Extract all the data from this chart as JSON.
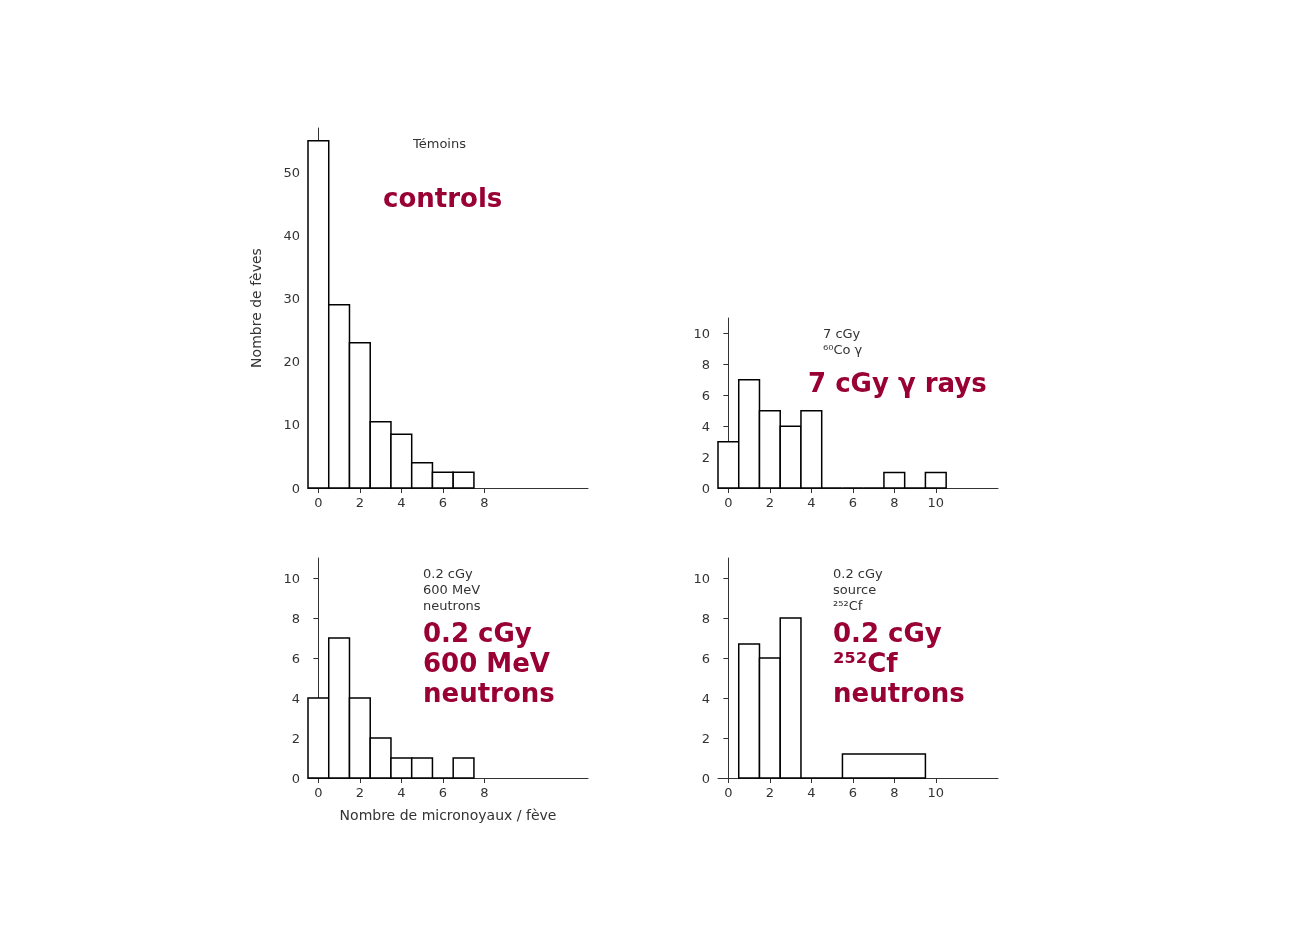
{
  "chart_data": [
    {
      "type": "histogram",
      "title": "controls",
      "subtitle": "Témoins",
      "ylabel": "Nombre de fèves",
      "bins": [
        -0.5,
        0.5,
        1.5,
        2.5,
        3.5,
        4.5,
        5.5,
        6.5,
        7.5
      ],
      "values": [
        55,
        29,
        23,
        10.5,
        8.5,
        4,
        2.5,
        2.5
      ],
      "color": "#000000",
      "xlim": [
        -0.5,
        13
      ],
      "xticks": [
        0,
        2,
        4,
        6,
        8
      ],
      "ylim": [
        0,
        57
      ],
      "yticks": [
        0,
        10,
        20,
        30,
        40,
        50
      ]
    },
    {
      "type": "histogram",
      "title": "7 cGy γ rays",
      "subtitle": "7 cGy\n⁶⁰Co γ",
      "bins": [
        -0.5,
        0.5,
        1.5,
        2.5,
        3.5,
        4.5,
        5.5,
        6.5,
        7.5,
        8.5,
        9.5,
        10.5
      ],
      "values": [
        3,
        7,
        5,
        4,
        5,
        0,
        0,
        0,
        1,
        0,
        1
      ],
      "color": "#000000",
      "xlim": [
        -0.5,
        13
      ],
      "xticks": [
        0,
        2,
        4,
        6,
        8,
        10
      ],
      "ylim": [
        0,
        11
      ],
      "yticks": [
        0,
        2,
        4,
        6,
        8,
        10
      ]
    },
    {
      "type": "histogram",
      "title": "0.2 cGy\n600 MeV\nneutrons",
      "subtitle": "0.2 cGy\n600 MeV\nneutrons",
      "xlabel": "Nombre de micronoyaux / fève",
      "bins": [
        -0.5,
        0.5,
        1.5,
        2.5,
        3.5,
        4.5,
        5.5,
        6.5,
        7.5
      ],
      "values": [
        4,
        7,
        4,
        2,
        1,
        1,
        0,
        1
      ],
      "color": "#000000",
      "xlim": [
        -0.5,
        13
      ],
      "xticks": [
        0,
        2,
        4,
        6,
        8
      ],
      "ylim": [
        0,
        11
      ],
      "yticks": [
        0,
        2,
        4,
        6,
        8,
        10
      ]
    },
    {
      "type": "histogram",
      "title": "0.2 cGy\n²⁵²Cf\nneutrons",
      "subtitle": "0.2 cGy\nsource\n²⁵²Cf",
      "bins": [
        0.5,
        1.5,
        2.5,
        3.5,
        5.5,
        9.5
      ],
      "values": [
        6.7,
        6,
        8,
        0,
        1.2
      ],
      "color": "#000000",
      "xlim": [
        -0.5,
        13
      ],
      "xticks": [
        0,
        2,
        4,
        6,
        8,
        10
      ],
      "ylim": [
        0,
        11
      ],
      "yticks": [
        0,
        2,
        4,
        6,
        8,
        10
      ]
    }
  ]
}
